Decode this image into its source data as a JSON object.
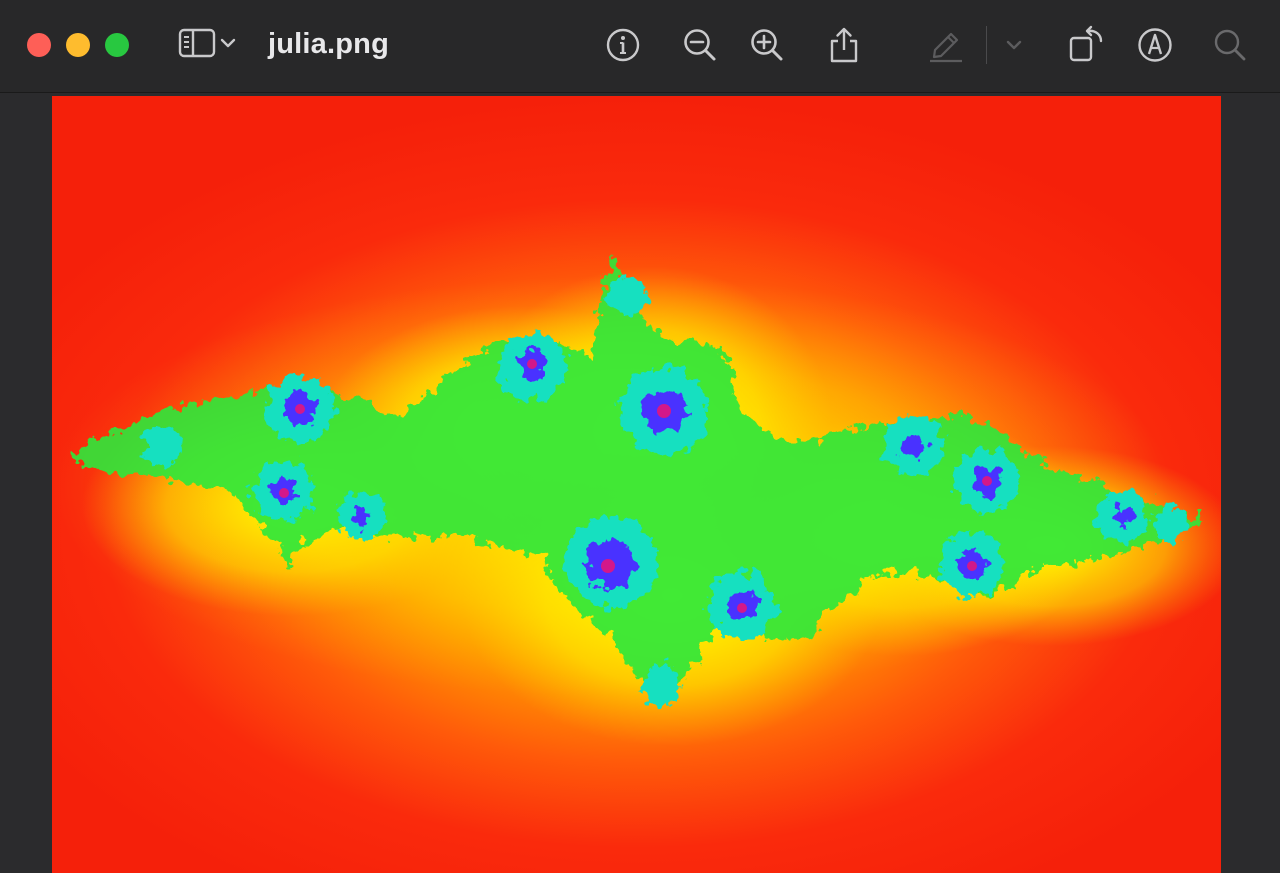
{
  "window": {
    "title": "julia.png"
  },
  "toolbar": {
    "icons": [
      "sidebar-icon",
      "chevron-down-icon",
      "info-icon",
      "zoom-out-icon",
      "zoom-in-icon",
      "share-icon",
      "highlight-pen-icon",
      "chevron-down-icon",
      "rotate-icon",
      "markup-icon",
      "search-icon"
    ]
  },
  "colors": {
    "close": "#fe5f57",
    "minimize": "#febc2e",
    "maximize": "#28c840",
    "titlebar": "#282829",
    "icon": "#c9c9cb",
    "icon_disabled": "#5c5c5e"
  },
  "image": {
    "subject": "julia-set-fractal"
  }
}
